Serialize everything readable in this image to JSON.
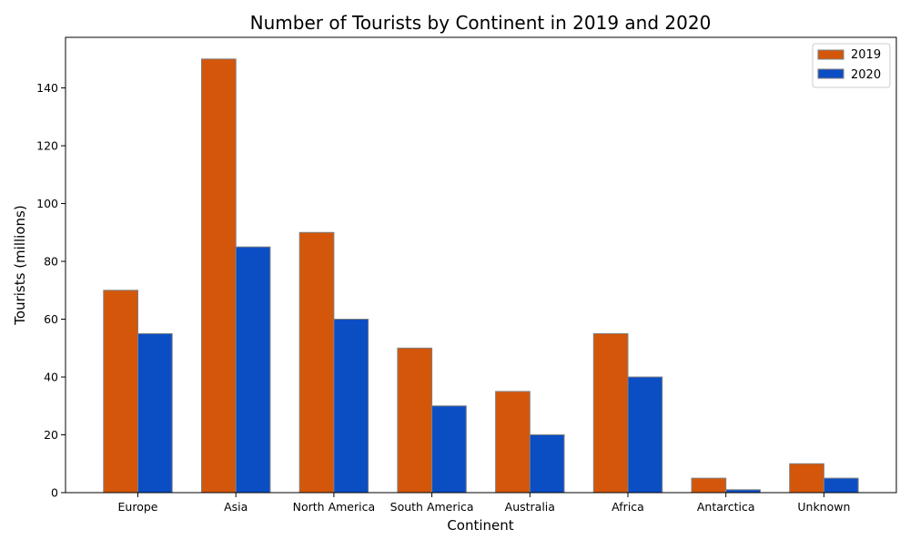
{
  "chart_data": {
    "type": "bar",
    "title": "Number of Tourists by Continent in 2019 and 2020",
    "xlabel": "Continent",
    "ylabel": "Tourists (millions)",
    "categories": [
      "Europe",
      "Asia",
      "North America",
      "South America",
      "Australia",
      "Africa",
      "Antarctica",
      "Unknown"
    ],
    "series": [
      {
        "name": "2019",
        "color": "#d4560a",
        "values": [
          70,
          150,
          90,
          50,
          35,
          55,
          5,
          10
        ]
      },
      {
        "name": "2020",
        "color": "#0b4ec4",
        "values": [
          55,
          85,
          60,
          30,
          20,
          40,
          1,
          5
        ]
      }
    ],
    "ylim": [
      0,
      157.5
    ],
    "yticks": [
      0,
      20,
      40,
      60,
      80,
      100,
      120,
      140
    ],
    "grid": false,
    "legend_position": "top-right",
    "bar_edge_color": "#808080"
  }
}
